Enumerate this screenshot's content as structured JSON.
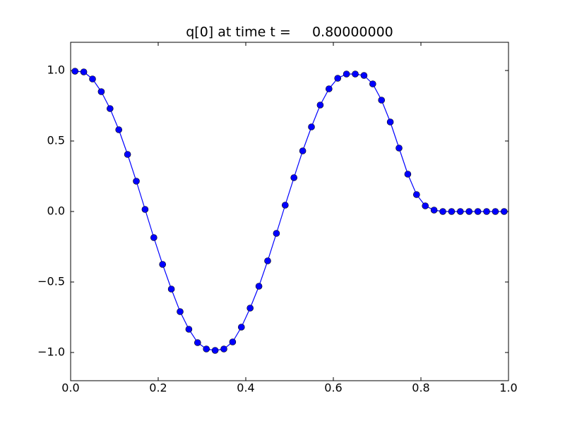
{
  "chart_data": {
    "type": "line",
    "title": "q[0] at time t =     0.80000000",
    "x": [
      0.01,
      0.03,
      0.05,
      0.07,
      0.09,
      0.11,
      0.13,
      0.15,
      0.17,
      0.19,
      0.21,
      0.23,
      0.25,
      0.27,
      0.29,
      0.31,
      0.33,
      0.35,
      0.37,
      0.39,
      0.41,
      0.43,
      0.45,
      0.47,
      0.49,
      0.51,
      0.53,
      0.55,
      0.57,
      0.59,
      0.61,
      0.63,
      0.65,
      0.67,
      0.69,
      0.71,
      0.73,
      0.75,
      0.77,
      0.79,
      0.81,
      0.83,
      0.85,
      0.87,
      0.89,
      0.91,
      0.93,
      0.95,
      0.97,
      0.99
    ],
    "series": [
      {
        "color": "#0000ff",
        "values": [
          0.995,
          0.99,
          0.94,
          0.85,
          0.73,
          0.58,
          0.405,
          0.215,
          0.015,
          -0.185,
          -0.375,
          -0.55,
          -0.71,
          -0.835,
          -0.93,
          -0.975,
          -0.985,
          -0.975,
          -0.925,
          -0.82,
          -0.685,
          -0.53,
          -0.35,
          -0.155,
          0.045,
          0.24,
          0.43,
          0.6,
          0.755,
          0.87,
          0.945,
          0.975,
          0.975,
          0.965,
          0.905,
          0.79,
          0.635,
          0.45,
          0.265,
          0.12,
          0.04,
          0.01,
          0,
          0,
          0,
          0,
          0,
          0,
          0,
          0
        ]
      }
    ],
    "xlim": [
      0,
      1
    ],
    "ylim": [
      -1.2,
      1.2
    ],
    "xticks": [
      {
        "value": 0,
        "label": "0.0"
      },
      0.2,
      0.4,
      0.6,
      0.8,
      {
        "value": 1,
        "label": "1.0"
      }
    ],
    "yticks": [
      {
        "value": -1,
        "label": "−1.0"
      },
      {
        "value": -0.5,
        "label": "−0.5"
      },
      {
        "value": 0,
        "label": "0.0"
      },
      {
        "value": 0.5,
        "label": "0.5"
      },
      {
        "value": 1,
        "label": "1.0"
      }
    ],
    "grid": false
  }
}
